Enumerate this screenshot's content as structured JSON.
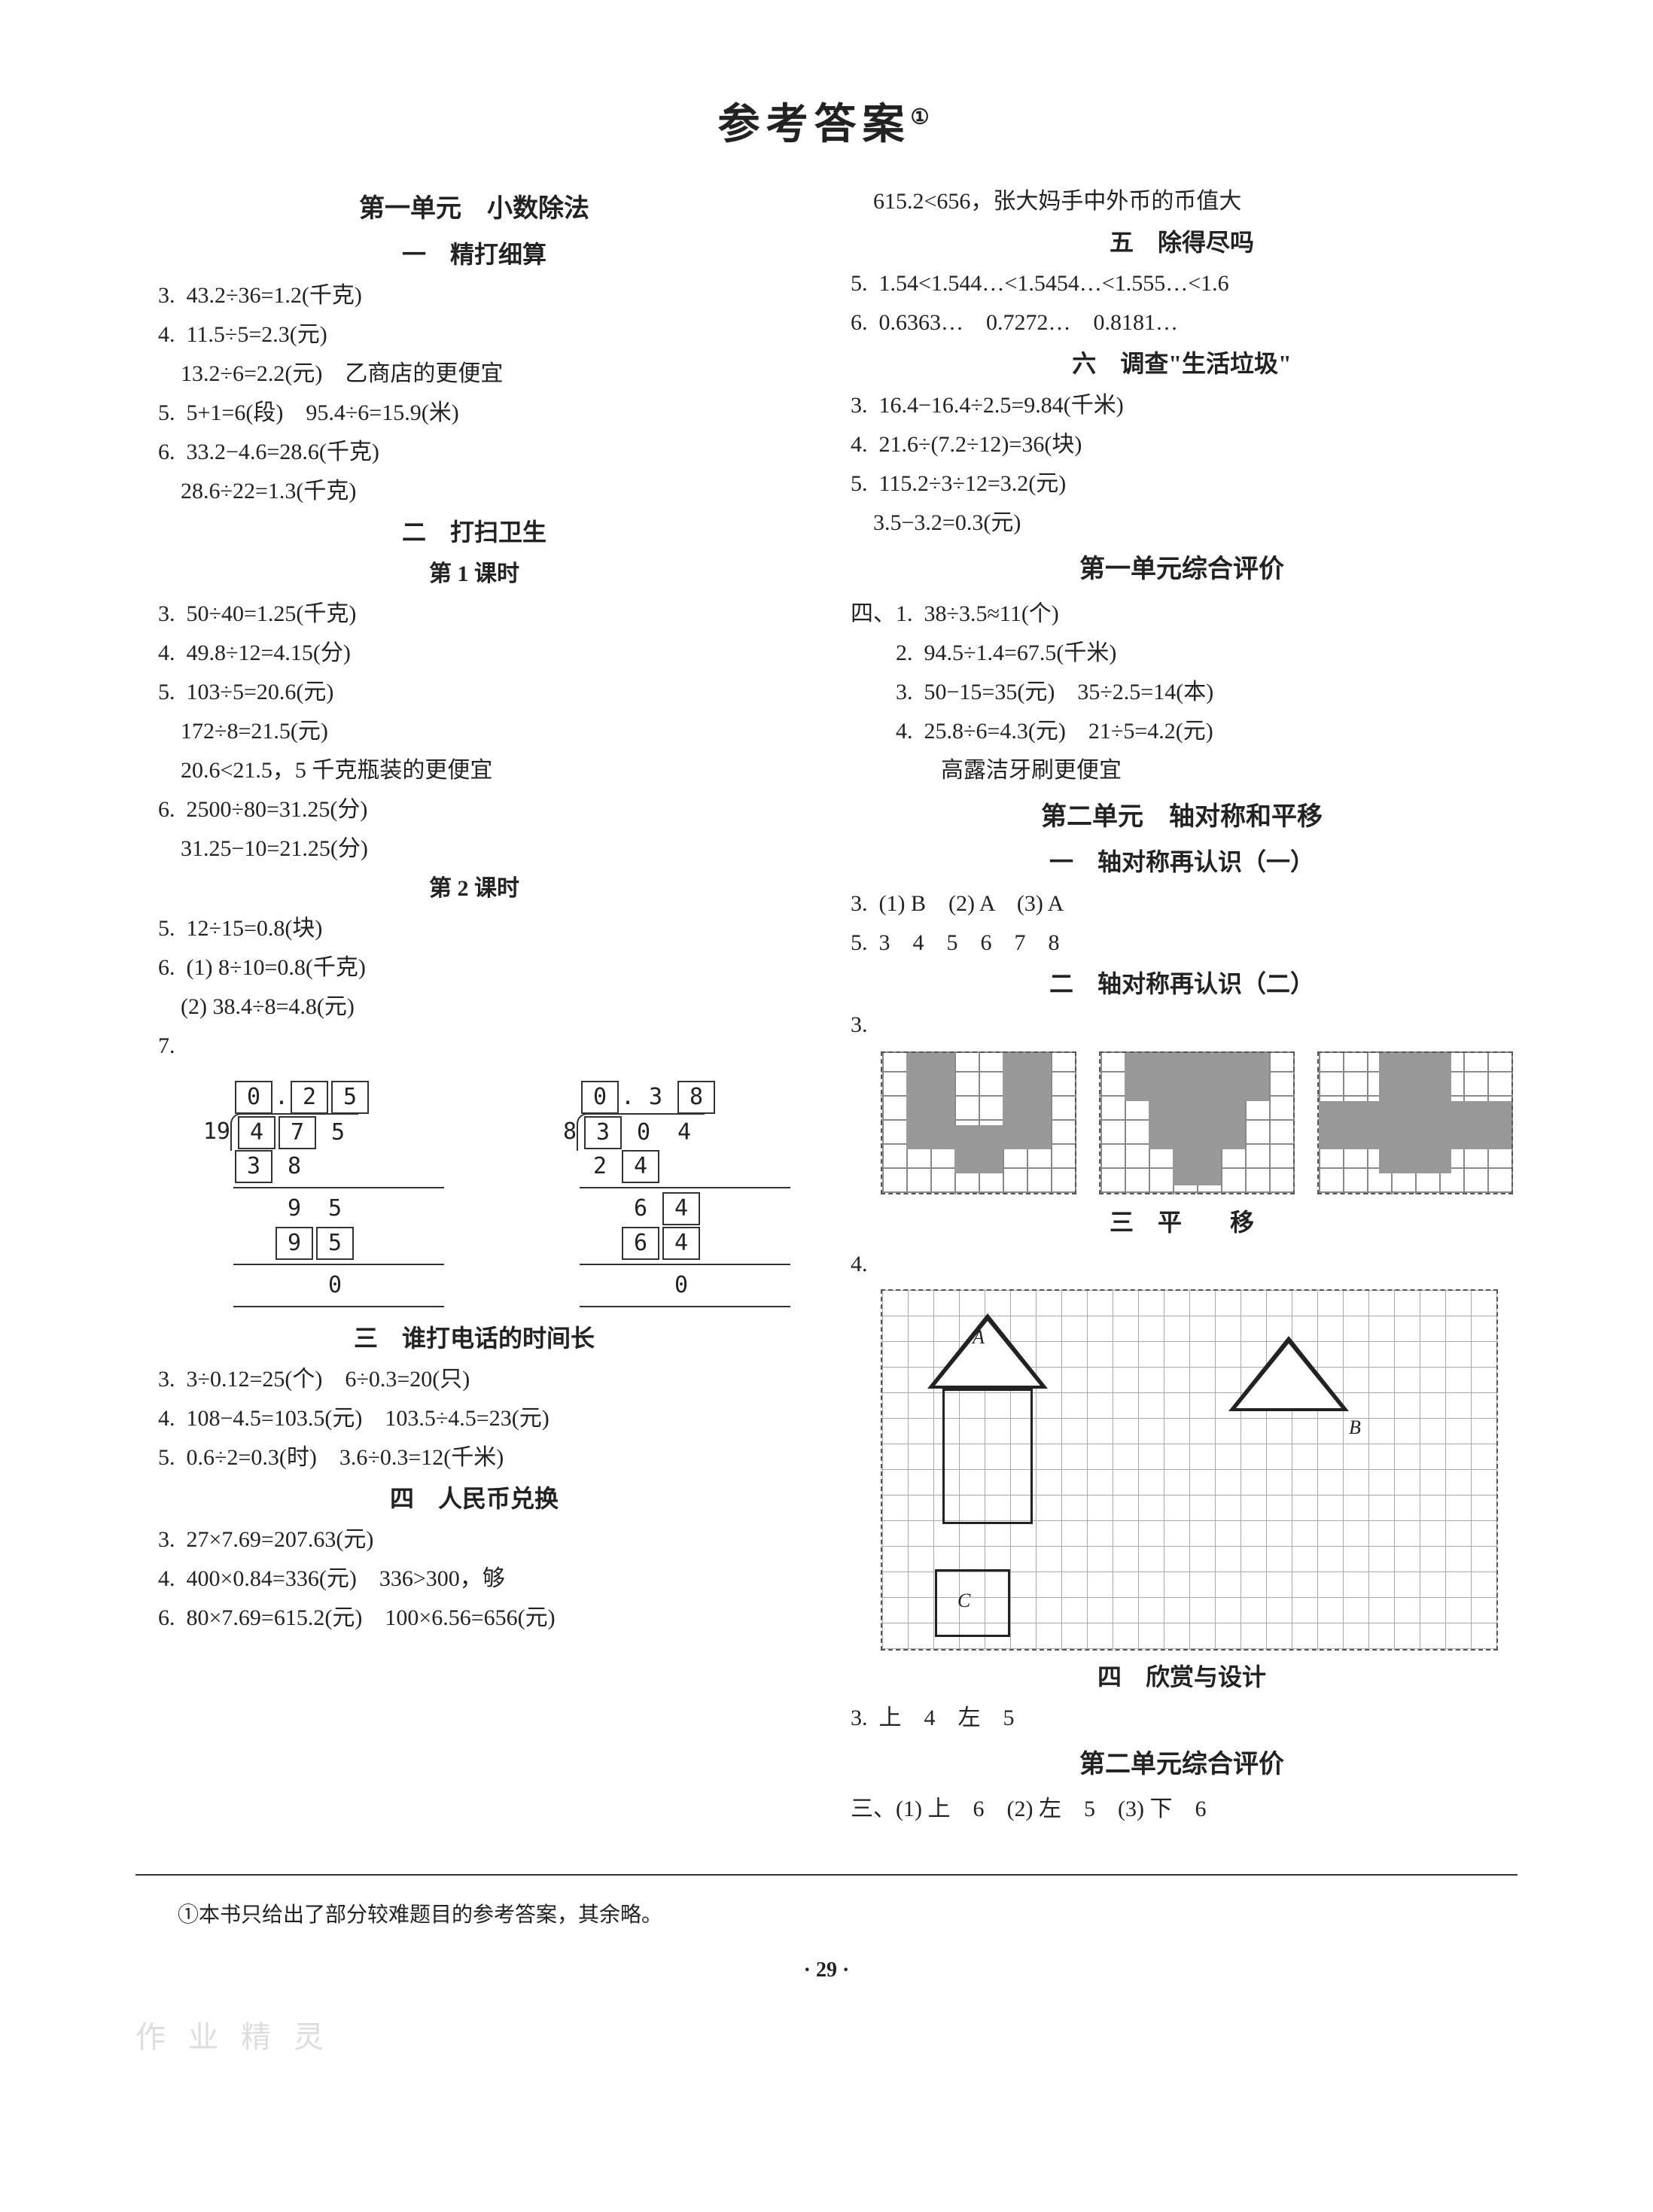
{
  "title": "参考答案",
  "title_sup": "①",
  "left": {
    "unit1": "第一单元　小数除法",
    "s1": "一　精打细算",
    "s1_lines": [
      "3.  43.2÷36=1.2(千克)",
      "4.  11.5÷5=2.3(元)",
      "    13.2÷6=2.2(元)　乙商店的更便宜",
      "5.  5+1=6(段)　95.4÷6=15.9(米)",
      "6.  33.2−4.6=28.6(千克)",
      "    28.6÷22=1.3(千克)"
    ],
    "s2": "二　打扫卫生",
    "s2a": "第 1 课时",
    "s2a_lines": [
      "3.  50÷40=1.25(千克)",
      "4.  49.8÷12=4.15(分)",
      "5.  103÷5=20.6(元)",
      "    172÷8=21.5(元)",
      "    20.6<21.5，5 千克瓶装的更便宜",
      "6.  2500÷80=31.25(分)",
      "    31.25−10=21.25(分)"
    ],
    "s2b": "第 2 课时",
    "s2b_lines": [
      "5.  12÷15=0.8(块)",
      "6.  (1) 8÷10=0.8(千克)",
      "    (2) 38.4÷8=4.8(元)",
      "7."
    ],
    "longdiv1": {
      "divisor": "19",
      "quotient": [
        "0",
        ".",
        "2",
        "5"
      ],
      "rows": [
        [
          "4",
          "7",
          "5"
        ],
        [
          "3",
          "8"
        ],
        [
          "",
          "9",
          "5"
        ],
        [
          "",
          "9",
          "5"
        ],
        [
          "",
          "",
          "0"
        ]
      ],
      "boxed_quotient": [
        0,
        2,
        3
      ],
      "boxed_rows": {
        "0": [
          0,
          1
        ],
        "1": [
          0
        ],
        "3": [
          1,
          2
        ]
      }
    },
    "longdiv2": {
      "divisor": "8",
      "quotient": [
        "0",
        ".",
        "3",
        "8"
      ],
      "rows": [
        [
          "3",
          "0",
          "4"
        ],
        [
          "2",
          "4"
        ],
        [
          "",
          "6",
          "4"
        ],
        [
          "",
          "6",
          "4"
        ],
        [
          "",
          "",
          "0"
        ]
      ],
      "boxed_quotient": [
        0,
        3
      ],
      "boxed_rows": {
        "0": [
          0
        ],
        "1": [
          1
        ],
        "2": [
          2
        ],
        "3": [
          1,
          2
        ]
      }
    },
    "s3": "三　谁打电话的时间长",
    "s3_lines": [
      "3.  3÷0.12=25(个)　6÷0.3=20(只)",
      "4.  108−4.5=103.5(元)　103.5÷4.5=23(元)",
      "5.  0.6÷2=0.3(时)　3.6÷0.3=12(千米)"
    ],
    "s4": "四　人民币兑换",
    "s4_lines": [
      "3.  27×7.69=207.63(元)",
      "4.  400×0.84=336(元)　336>300，够",
      "6.  80×7.69=615.2(元)　100×6.56=656(元)"
    ]
  },
  "right": {
    "r0": "    615.2<656，张大妈手中外币的币值大",
    "s5": "五　除得尽吗",
    "s5_lines": [
      "5.  1.54<1.544…<1.5454…<1.555…<1.6",
      "6.  0.6363…　0.7272…　0.8181…"
    ],
    "s6": "六　调查\"生活垃圾\"",
    "s6_lines": [
      "3.  16.4−16.4÷2.5=9.84(千米)",
      "4.  21.6÷(7.2÷12)=36(块)",
      "5.  115.2÷3÷12=3.2(元)",
      "    3.5−3.2=0.3(元)"
    ],
    "eval1": "第一单元综合评价",
    "eval1_lines": [
      "四、1.  38÷3.5≈11(个)",
      "　　2.  94.5÷1.4=67.5(千米)",
      "　　3.  50−15=35(元)　35÷2.5=14(本)",
      "　　4.  25.8÷6=4.3(元)　21÷5=4.2(元)",
      "　　　　高露洁牙刷更便宜"
    ],
    "unit2": "第二单元　轴对称和平移",
    "u2s1": "一　轴对称再认识（一）",
    "u2s1_lines": [
      "3.  (1) B　(2) A　(3) A",
      "5.  3　4　5　6　7　8"
    ],
    "u2s2": "二　轴对称再认识（二）",
    "u2s2_q": "3.",
    "u2s3": "三　平　　移",
    "u2s3_q": "4.",
    "u2s4": "四　欣赏与设计",
    "u2s4_lines": [
      "3.  上　4　左　5"
    ],
    "eval2": "第二单元综合评价",
    "eval2_lines": [
      "三、(1) 上　6　(2) 左　5　(3) 下　6"
    ]
  },
  "footnote": "①本书只给出了部分较难题目的参考答案，其余略。",
  "pageno": "· 29 ·",
  "watermark": "作 业 精 灵",
  "colors": {
    "text": "#222222",
    "bg": "#ffffff",
    "grid": "#aaaaaa",
    "fill": "#999999",
    "border": "#333333"
  }
}
